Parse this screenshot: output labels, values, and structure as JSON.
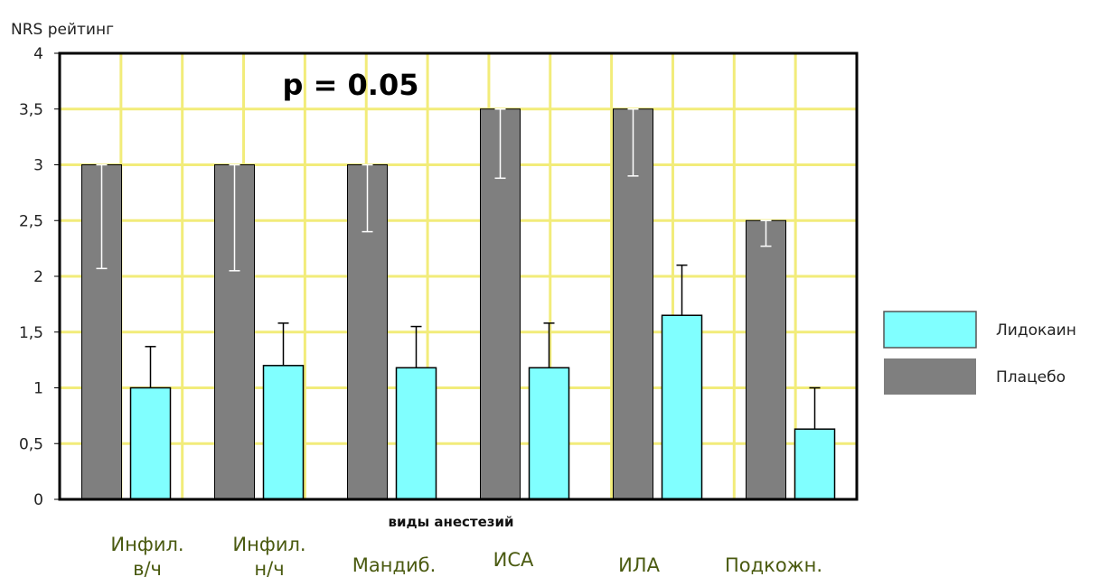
{
  "colors": {
    "placebo": "#7f7f7f",
    "lidocaine": "#80ffff",
    "plot_bg": "#ffffff",
    "grid": "#f2ec7a",
    "frame": "#000000",
    "error_bar_placebo": "#ffffff",
    "error_bar_lidocaine": "#000000",
    "category_text": "#4a5a10"
  },
  "chart_data": {
    "type": "bar",
    "ylabel": "NRS рейтинг",
    "xlabel": "виды анестезий",
    "annotation": "p = 0.05",
    "ylim": [
      0,
      4
    ],
    "yticks": [
      "0",
      "0,5",
      "1",
      "1,5",
      "2",
      "2,5",
      "3",
      "3,5",
      "4"
    ],
    "grid": true,
    "legend_position": "right",
    "categories": [
      [
        "Инфил.",
        "в/ч"
      ],
      [
        "Инфил.",
        "н/ч"
      ],
      [
        "Мандиб."
      ],
      [
        "ИСА"
      ],
      [
        "ИЛА"
      ],
      [
        "Подкожн."
      ]
    ],
    "series": [
      {
        "name": "Плацебо",
        "values": [
          3.0,
          3.0,
          3.0,
          3.5,
          3.5,
          2.5
        ],
        "err_low": [
          2.07,
          2.05,
          2.4,
          2.88,
          2.9,
          2.27
        ],
        "err_high": [
          3.0,
          3.0,
          3.0,
          3.5,
          3.5,
          2.5
        ]
      },
      {
        "name": "Лидокаин",
        "values": [
          1.0,
          1.2,
          1.18,
          1.18,
          1.65,
          0.63
        ],
        "err_low": [
          1.0,
          1.2,
          1.18,
          1.18,
          1.65,
          0.63
        ],
        "err_high": [
          1.37,
          1.58,
          1.55,
          1.58,
          2.1,
          1.0
        ]
      }
    ]
  },
  "legend": [
    {
      "label": "Лидокаин",
      "series": "Лидокаин"
    },
    {
      "label": "Плацебо",
      "series": "Плацебо"
    }
  ]
}
